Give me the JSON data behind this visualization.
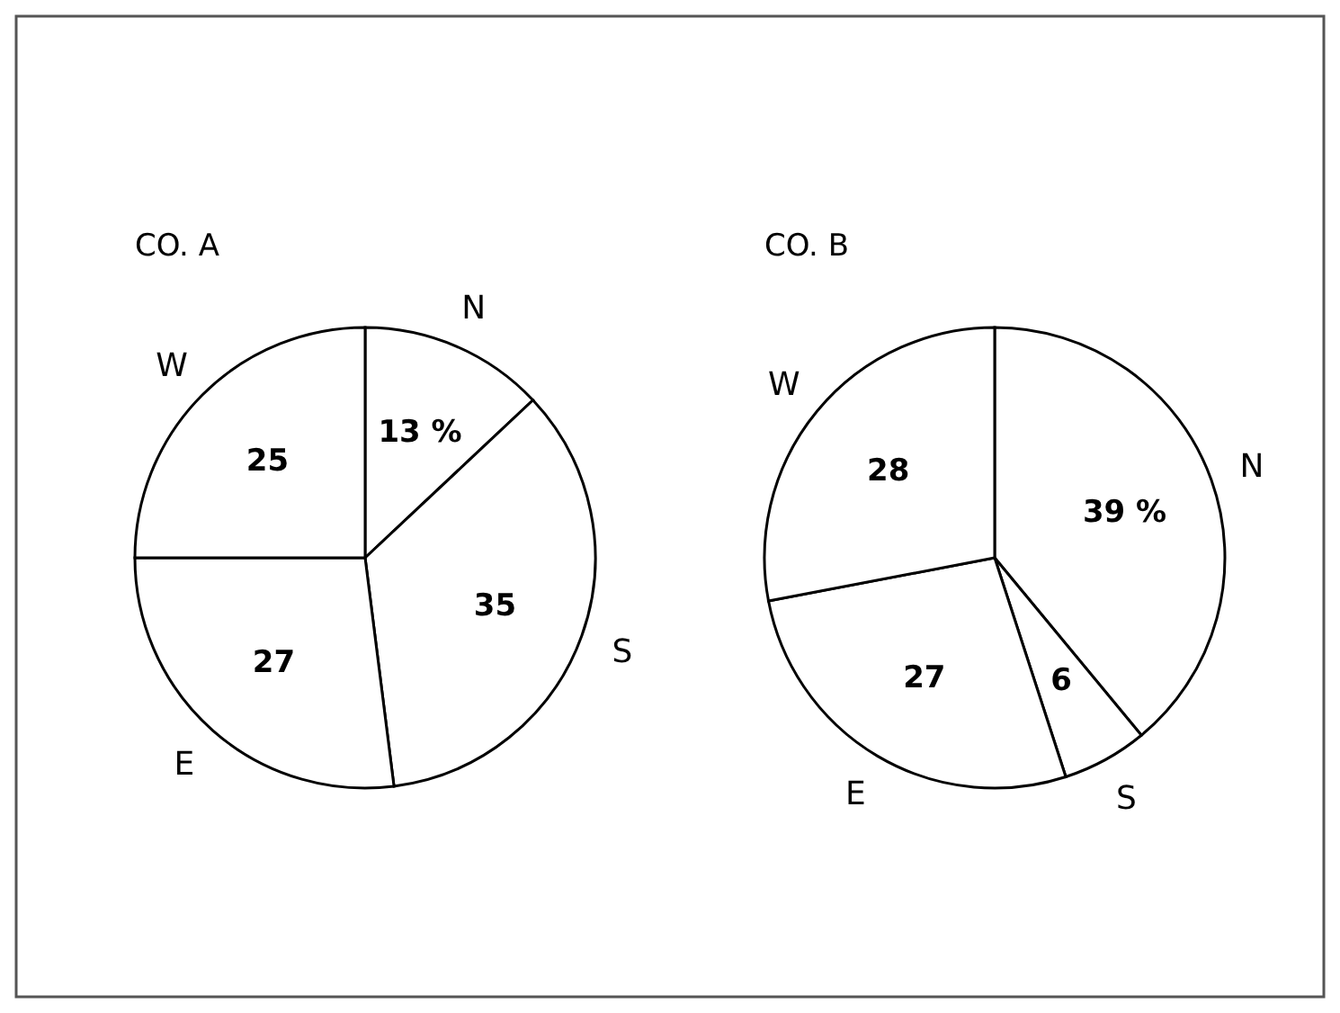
{
  "chart_data": [
    {
      "type": "pie",
      "title": "CO. A",
      "categories": [
        "N",
        "S",
        "E",
        "W"
      ],
      "values": [
        13,
        35,
        27,
        25
      ],
      "value_labels": [
        "13 %",
        "35",
        "27",
        "25"
      ],
      "colors": [
        "#ffffff",
        "#ffffff",
        "#ffffff",
        "#ffffff"
      ]
    },
    {
      "type": "pie",
      "title": "CO. B",
      "categories": [
        "N",
        "S",
        "E",
        "W"
      ],
      "values": [
        39,
        6,
        27,
        28
      ],
      "value_labels": [
        "39 %",
        "6",
        "27",
        "28"
      ],
      "colors": [
        "#ffffff",
        "#ffffff",
        "#ffffff",
        "#ffffff"
      ]
    }
  ]
}
